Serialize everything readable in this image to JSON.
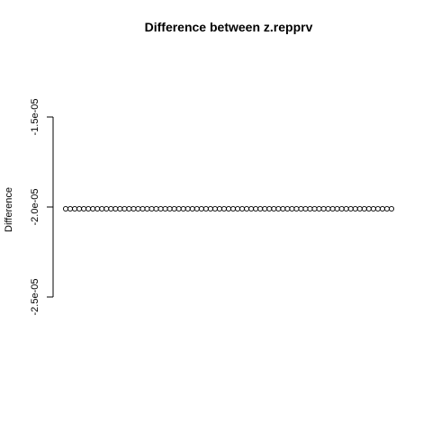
{
  "chart_data": {
    "type": "scatter",
    "title": "Difference between z.repprv",
    "ylabel": "Difference",
    "xlabel": "",
    "ylim": [
      -2.5e-05,
      -1.5e-05
    ],
    "y_ticks": [
      {
        "value": -2.5e-05,
        "label": "-2.5e-05"
      },
      {
        "value": -2e-05,
        "label": "-2.0e-05"
      },
      {
        "value": -1.5e-05,
        "label": "-1.5e-05"
      }
    ],
    "x_axis_shown": false,
    "x": [
      1,
      2,
      3,
      4,
      5,
      6,
      7,
      8,
      9,
      10,
      11,
      12,
      13,
      14,
      15,
      16,
      17,
      18,
      19,
      20,
      21,
      22,
      23,
      24,
      25,
      26,
      27,
      28,
      29,
      30,
      31,
      32,
      33,
      34,
      35,
      36,
      37,
      38,
      39,
      40,
      41,
      42,
      43,
      44,
      45,
      46,
      47,
      48,
      49,
      50,
      51,
      52,
      53,
      54,
      55,
      56,
      57,
      58,
      59,
      60,
      61,
      62,
      63,
      64,
      65,
      66,
      67,
      68,
      69,
      70,
      71,
      72,
      73
    ],
    "y": [
      -2.01e-05,
      -2.01e-05,
      -2.01e-05,
      -2.01e-05,
      -2.01e-05,
      -2.01e-05,
      -2.01e-05,
      -2.01e-05,
      -2.01e-05,
      -2.01e-05,
      -2.01e-05,
      -2.01e-05,
      -2.01e-05,
      -2.01e-05,
      -2.01e-05,
      -2.01e-05,
      -2.01e-05,
      -2.01e-05,
      -2.01e-05,
      -2.01e-05,
      -2.01e-05,
      -2.01e-05,
      -2.01e-05,
      -2.01e-05,
      -2.01e-05,
      -2.01e-05,
      -2.01e-05,
      -2.01e-05,
      -2.01e-05,
      -2.01e-05,
      -2.01e-05,
      -2.01e-05,
      -2.01e-05,
      -2.01e-05,
      -2.01e-05,
      -2.01e-05,
      -2.01e-05,
      -2.01e-05,
      -2.01e-05,
      -2.01e-05,
      -2.01e-05,
      -2.01e-05,
      -2.01e-05,
      -2.01e-05,
      -2.01e-05,
      -2.01e-05,
      -2.01e-05,
      -2.01e-05,
      -2.01e-05,
      -2.01e-05,
      -2.01e-05,
      -2.01e-05,
      -2.01e-05,
      -2.01e-05,
      -2.01e-05,
      -2.01e-05,
      -2.01e-05,
      -2.01e-05,
      -2.01e-05,
      -2.01e-05,
      -2.01e-05,
      -2.01e-05,
      -2.01e-05,
      -2.01e-05,
      -2.01e-05,
      -2.01e-05,
      -2.01e-05,
      -2.01e-05,
      -2.01e-05,
      -2.01e-05,
      -2.01e-05,
      -2.01e-05,
      -2.01e-05
    ],
    "marker": "open-circle",
    "grid": false,
    "legend": "none"
  }
}
